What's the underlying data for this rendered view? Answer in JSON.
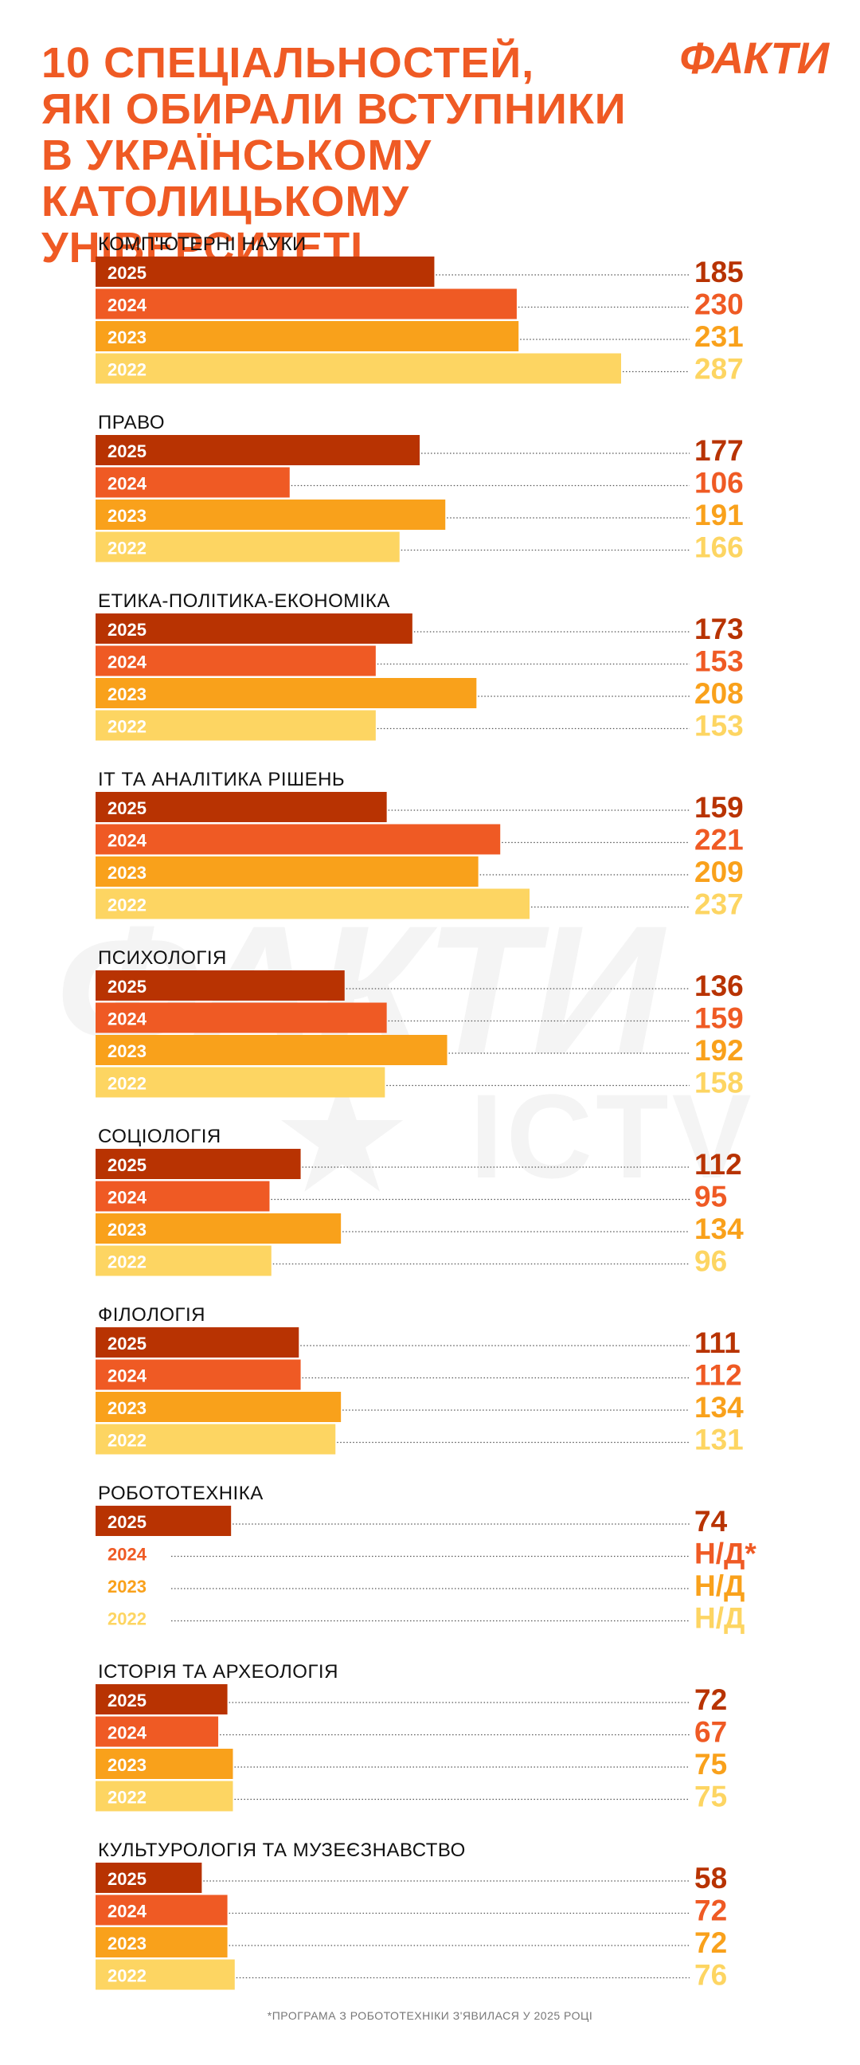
{
  "header": {
    "title_lines": [
      "10 СПЕЦІАЛЬНОСТЕЙ,",
      "ЯКІ ОБИРАЛИ ВСТУПНИКИ",
      "В УКРАЇНСЬКОМУ КАТОЛИЦЬКОМУ",
      "УНІВЕРСИТЕТІ"
    ],
    "logo": "ФАКТИ"
  },
  "watermark": {
    "main": "ФАКТИ",
    "sub": "ICTV"
  },
  "footnote": "*ПРОГРАМА З РОБОТОТЕХНІКИ З'ЯВИЛАСЯ У 2025 РОЦІ",
  "colors": {
    "2025": "#b83302",
    "2024": "#ef5a24",
    "2023": "#f9a11b",
    "2022": "#fdd562",
    "title": "#ef5a24",
    "dotted": "#555555"
  },
  "chart_data": {
    "type": "bar",
    "orientation": "horizontal",
    "series_names": [
      "2025",
      "2024",
      "2023",
      "2022"
    ],
    "groups": [
      {
        "name": "КОМП'ЮТЕРНІ НАУКИ",
        "values": [
          185,
          230,
          231,
          287
        ],
        "labels": [
          "185",
          "230",
          "231",
          "287"
        ]
      },
      {
        "name": "ПРАВО",
        "values": [
          177,
          106,
          191,
          166
        ],
        "labels": [
          "177",
          "106",
          "191",
          "166"
        ]
      },
      {
        "name": "ЕТИКА-ПОЛІТИКА-ЕКОНОМІКА",
        "values": [
          173,
          153,
          208,
          153
        ],
        "labels": [
          "173",
          "153",
          "208",
          "153"
        ]
      },
      {
        "name": "ІТ ТА АНАЛІТИКА РІШЕНЬ",
        "values": [
          159,
          221,
          209,
          237
        ],
        "labels": [
          "159",
          "221",
          "209",
          "237"
        ]
      },
      {
        "name": "ПСИХОЛОГІЯ",
        "values": [
          136,
          159,
          192,
          158
        ],
        "labels": [
          "136",
          "159",
          "192",
          "158"
        ]
      },
      {
        "name": "СОЦІОЛОГІЯ",
        "values": [
          112,
          95,
          134,
          96
        ],
        "labels": [
          "112",
          "95",
          "134",
          "96"
        ]
      },
      {
        "name": "ФІЛОЛОГІЯ",
        "values": [
          111,
          112,
          134,
          131
        ],
        "labels": [
          "111",
          "112",
          "134",
          "131"
        ]
      },
      {
        "name": "РОБОТОТЕХНІКА",
        "values": [
          74,
          null,
          null,
          null
        ],
        "labels": [
          "74",
          "Н/Д*",
          "Н/Д",
          "Н/Д"
        ]
      },
      {
        "name": "ІСТОРІЯ ТА АРХЕОЛОГІЯ",
        "values": [
          72,
          67,
          75,
          75
        ],
        "labels": [
          "72",
          "67",
          "75",
          "75"
        ]
      },
      {
        "name": "КУЛЬТУРОЛОГІЯ ТА МУЗЕЄЗНАВСТВО",
        "values": [
          58,
          72,
          72,
          76
        ],
        "labels": [
          "58",
          "72",
          "72",
          "76"
        ]
      }
    ]
  }
}
